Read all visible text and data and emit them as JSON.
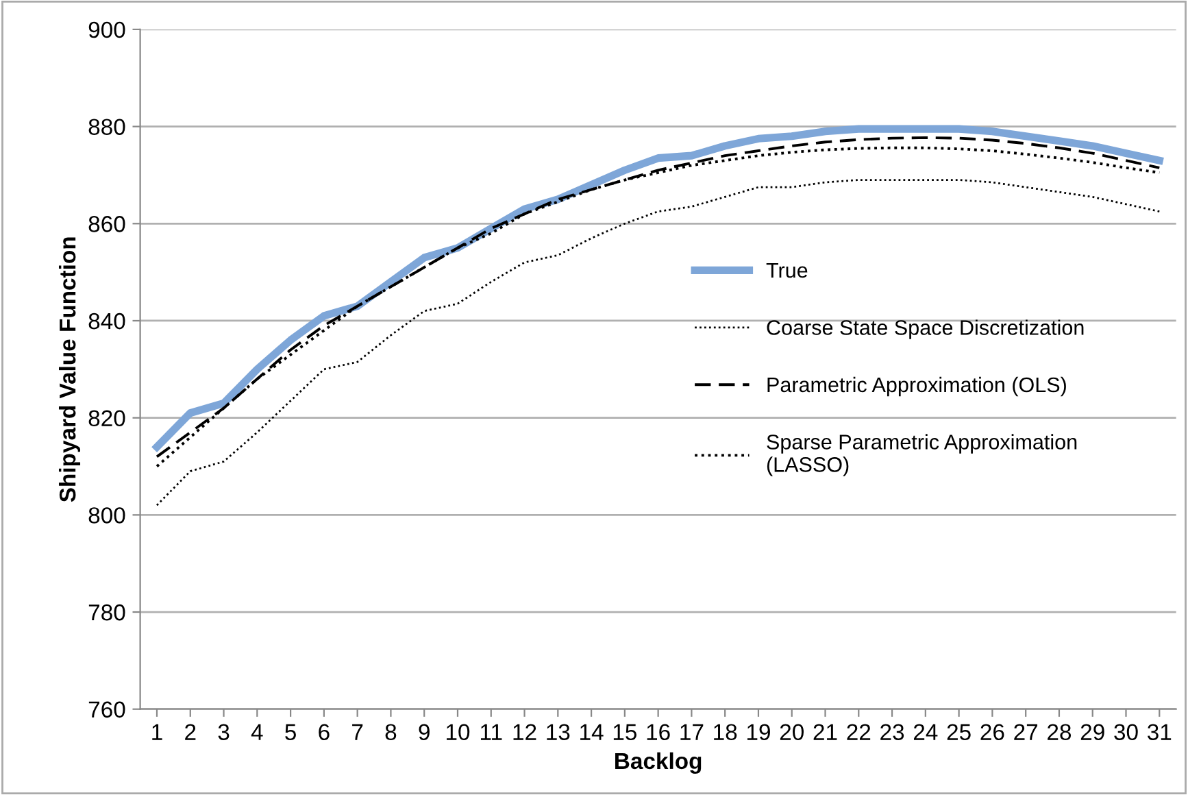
{
  "chart_data": {
    "type": "line",
    "xlabel": "Backlog",
    "ylabel": "Shipyard Value Function",
    "categories": [
      "1",
      "2",
      "3",
      "4",
      "5",
      "6",
      "7",
      "8",
      "9",
      "10",
      "11",
      "12",
      "13",
      "14",
      "15",
      "16",
      "17",
      "18",
      "19",
      "20",
      "21",
      "22",
      "23",
      "24",
      "25",
      "26",
      "27",
      "28",
      "29",
      "30",
      "31"
    ],
    "ylim": [
      760,
      900
    ],
    "yticks": [
      760,
      780,
      800,
      820,
      840,
      860,
      880,
      900
    ],
    "grid": "y",
    "legend": "center right",
    "marker": "none",
    "series": [
      {
        "name": "True",
        "color": "#7ea6d8",
        "line_style": "solid",
        "values": [
          814,
          821,
          823,
          830,
          836,
          841,
          843,
          848,
          853,
          855,
          859,
          863,
          865,
          868,
          871,
          873.5,
          874,
          876,
          877.5,
          878,
          879,
          879.5,
          879.5,
          879.5,
          879.5,
          879,
          878,
          877,
          876,
          874.5,
          873
        ]
      },
      {
        "name": "Coarse State Space Discretization",
        "color": "#000000",
        "line_style": "dotted",
        "values": [
          802,
          809,
          811,
          817,
          823.5,
          830,
          831.5,
          837,
          842,
          843.5,
          848,
          852,
          853.5,
          857,
          860,
          862.5,
          863.5,
          865.5,
          867.5,
          867.5,
          868.5,
          869,
          869,
          869,
          869,
          868.5,
          867.5,
          866.5,
          865.5,
          864,
          862.5
        ]
      },
      {
        "name": "Parametric Approximation (OLS)",
        "color": "#000000",
        "line_style": "dashed",
        "values": [
          812,
          817,
          822,
          828,
          834,
          839,
          843,
          847,
          851,
          855,
          859,
          862,
          865,
          867,
          869,
          871,
          872.5,
          874,
          875,
          876,
          876.8,
          877.3,
          877.6,
          877.7,
          877.6,
          877.2,
          876.5,
          875.6,
          874.5,
          873,
          871.5
        ]
      },
      {
        "name": "Sparse Parametric Approximation\n(LASSO)",
        "color": "#000000",
        "line_style": "dotted",
        "values": [
          810,
          816,
          822,
          828,
          833,
          838,
          843,
          847,
          851,
          855,
          858,
          862,
          864.5,
          867,
          869,
          870.5,
          872,
          873,
          874,
          874.7,
          875.2,
          875.5,
          875.6,
          875.6,
          875.4,
          875,
          874.3,
          873.5,
          872.6,
          871.5,
          870.5
        ]
      }
    ]
  }
}
